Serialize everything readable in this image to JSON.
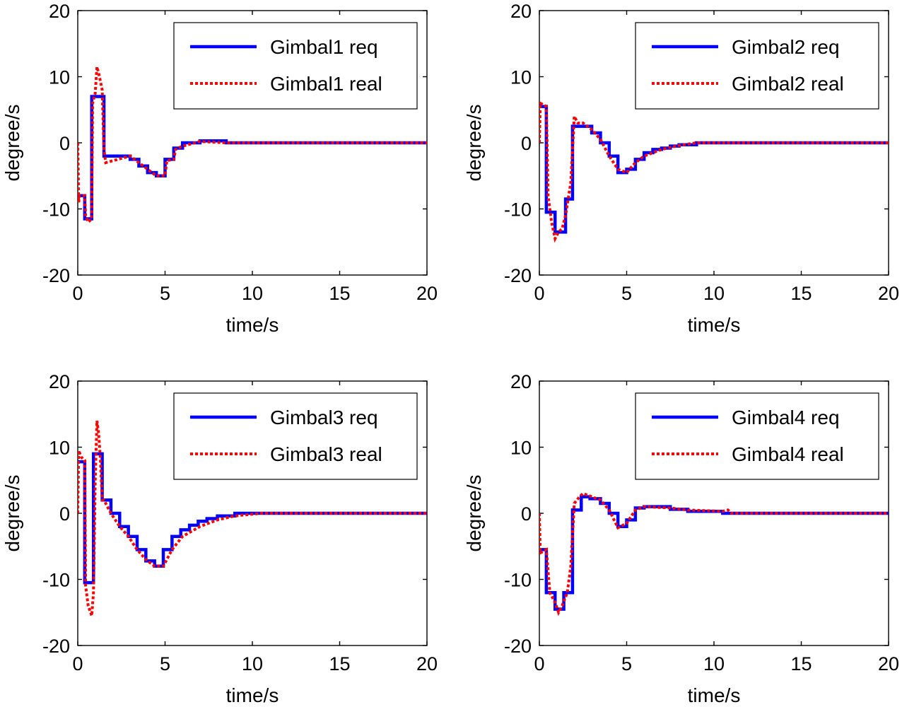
{
  "chart_data": [
    {
      "type": "line",
      "xlabel": "time/s",
      "ylabel": "degree/s",
      "xlim": [
        0,
        20
      ],
      "ylim": [
        -20,
        20
      ],
      "xticks": [
        0,
        5,
        10,
        15,
        20
      ],
      "yticks": [
        -20,
        -10,
        0,
        10,
        20
      ],
      "xtick_labels": [
        "0",
        "5",
        "10",
        "15",
        "20"
      ],
      "ytick_labels": [
        "-20",
        "-10",
        "0",
        "10",
        "20"
      ],
      "grid": false,
      "legend_position": "top-right",
      "series": [
        {
          "name": "Gimbal1 req",
          "color": "#0000ff",
          "style": "solid",
          "x": [
            0,
            0.4,
            0.4,
            0.8,
            0.8,
            1.05,
            1.05,
            1.5,
            1.5,
            3.0,
            3.0,
            3.5,
            3.5,
            4.0,
            4.0,
            4.5,
            4.5,
            5.0,
            5.0,
            5.5,
            5.5,
            6.0,
            6.0,
            7.0,
            7.0,
            8.5,
            8.5,
            20
          ],
          "y": [
            -8,
            -8,
            -11.5,
            -11.5,
            7,
            7,
            7,
            7,
            -2,
            -2,
            -2.5,
            -2.5,
            -3.5,
            -3.5,
            -4.5,
            -4.5,
            -5,
            -5,
            -2.5,
            -2.5,
            -0.8,
            -0.8,
            0,
            0,
            0.3,
            0.3,
            0,
            0
          ]
        },
        {
          "name": "Gimbal1 real",
          "color": "#ff0000",
          "style": "dotted",
          "x": [
            0,
            0.05,
            0.1,
            0.4,
            0.45,
            0.6,
            0.8,
            0.85,
            1.0,
            1.1,
            1.2,
            1.4,
            1.5,
            1.6,
            3.0,
            3.5,
            4.0,
            4.5,
            5.0,
            5.1,
            5.5,
            5.6,
            6.0,
            7.0,
            8.5,
            20
          ],
          "y": [
            0,
            -9,
            -8,
            -8,
            -11,
            -12,
            -11.5,
            6,
            7.5,
            11.5,
            10.5,
            8,
            -1,
            -3,
            -2,
            -3,
            -4,
            -5,
            -5,
            -2.7,
            -2.5,
            -1,
            -0.5,
            0.2,
            0,
            0
          ]
        }
      ]
    },
    {
      "type": "line",
      "xlabel": "time/s",
      "ylabel": "degree/s",
      "xlim": [
        0,
        20
      ],
      "ylim": [
        -20,
        20
      ],
      "xticks": [
        0,
        5,
        10,
        15,
        20
      ],
      "yticks": [
        -20,
        -10,
        0,
        10,
        20
      ],
      "xtick_labels": [
        "0",
        "5",
        "10",
        "15",
        "20"
      ],
      "ytick_labels": [
        "-20",
        "-10",
        "0",
        "10",
        "20"
      ],
      "grid": false,
      "legend_position": "top-right",
      "series": [
        {
          "name": "Gimbal2 req",
          "color": "#0000ff",
          "style": "solid",
          "x": [
            0,
            0.4,
            0.4,
            0.9,
            0.9,
            1.5,
            1.5,
            1.9,
            1.9,
            2.5,
            2.5,
            3.0,
            3.0,
            3.5,
            3.5,
            4.0,
            4.0,
            4.5,
            4.5,
            5.0,
            5.0,
            5.5,
            5.5,
            6.0,
            6.0,
            6.5,
            6.5,
            7.0,
            7.0,
            7.5,
            7.5,
            8.0,
            8.0,
            9.0,
            9.0,
            20
          ],
          "y": [
            5.5,
            5.5,
            -10.5,
            -10.5,
            -13.5,
            -13.5,
            -8.5,
            -8.5,
            2.5,
            2.5,
            2.5,
            2.5,
            1.5,
            1.5,
            0,
            0,
            -2,
            -2,
            -4.5,
            -4.5,
            -4,
            -4,
            -2.5,
            -2.5,
            -1.5,
            -1.5,
            -1,
            -1,
            -0.8,
            -0.8,
            -0.5,
            -0.5,
            -0.3,
            -0.3,
            0,
            0
          ]
        },
        {
          "name": "Gimbal2 real",
          "color": "#ff0000",
          "style": "dotted",
          "x": [
            0,
            0.05,
            0.4,
            0.5,
            0.7,
            0.9,
            1.1,
            1.3,
            1.5,
            1.8,
            2.0,
            2.2,
            2.5,
            3.0,
            3.5,
            4.0,
            4.5,
            5.0,
            5.5,
            6.0,
            7.0,
            8.0,
            9.0,
            20
          ],
          "y": [
            0,
            6,
            5.5,
            -8,
            -12,
            -14.5,
            -13.5,
            -13,
            -11,
            -6,
            4,
            3,
            3,
            2,
            0.5,
            -2,
            -4,
            -4.5,
            -3,
            -2,
            -1,
            -0.4,
            0,
            0
          ]
        }
      ]
    },
    {
      "type": "line",
      "xlabel": "time/s",
      "ylabel": "degree/s",
      "xlim": [
        0,
        20
      ],
      "ylim": [
        -20,
        20
      ],
      "xticks": [
        0,
        5,
        10,
        15,
        20
      ],
      "yticks": [
        -20,
        -10,
        0,
        10,
        20
      ],
      "xtick_labels": [
        "0",
        "5",
        "10",
        "15",
        "20"
      ],
      "ytick_labels": [
        "-20",
        "-10",
        "0",
        "10",
        "20"
      ],
      "grid": false,
      "legend_position": "top-right",
      "series": [
        {
          "name": "Gimbal3 req",
          "color": "#0000ff",
          "style": "solid",
          "x": [
            0,
            0.4,
            0.4,
            0.9,
            0.9,
            1.4,
            1.4,
            1.9,
            1.9,
            2.4,
            2.4,
            2.9,
            2.9,
            3.4,
            3.4,
            3.9,
            3.9,
            4.4,
            4.4,
            4.9,
            4.9,
            5.4,
            5.4,
            5.9,
            5.9,
            6.4,
            6.4,
            6.9,
            6.9,
            7.4,
            7.4,
            8.0,
            8.0,
            9.0,
            9.0,
            10.5,
            10.5,
            20
          ],
          "y": [
            7.8,
            7.8,
            -10.5,
            -10.5,
            9,
            9,
            2,
            2,
            0,
            0,
            -2,
            -2,
            -3.5,
            -3.5,
            -5.5,
            -5.5,
            -7.2,
            -7.2,
            -8,
            -8,
            -5.5,
            -5.5,
            -3.5,
            -3.5,
            -2.5,
            -2.5,
            -1.8,
            -1.8,
            -1.2,
            -1.2,
            -0.8,
            -0.8,
            -0.4,
            -0.4,
            0,
            0,
            0,
            0
          ]
        },
        {
          "name": "Gimbal3 real",
          "color": "#ff0000",
          "style": "dotted",
          "x": [
            0,
            0.05,
            0.2,
            0.4,
            0.45,
            0.6,
            0.8,
            0.9,
            1.0,
            1.1,
            1.2,
            1.3,
            1.4,
            1.5,
            1.9,
            2.4,
            2.9,
            3.4,
            3.9,
            4.4,
            4.9,
            5.4,
            6.0,
            7.0,
            8.0,
            9.0,
            10.5,
            20
          ],
          "y": [
            0,
            9.5,
            8.5,
            8,
            -11,
            -14,
            -15.5,
            -12,
            5,
            14,
            12,
            8,
            2,
            2,
            0,
            -2,
            -3.5,
            -5.5,
            -7,
            -8,
            -8,
            -5.5,
            -3.5,
            -2,
            -1,
            -0.4,
            0,
            0
          ]
        }
      ]
    },
    {
      "type": "line",
      "xlabel": "time/s",
      "ylabel": "degree/s",
      "xlim": [
        0,
        20
      ],
      "ylim": [
        -20,
        20
      ],
      "xticks": [
        0,
        5,
        10,
        15,
        20
      ],
      "yticks": [
        -20,
        -10,
        0,
        10,
        20
      ],
      "xtick_labels": [
        "0",
        "5",
        "10",
        "15",
        "20"
      ],
      "ytick_labels": [
        "-20",
        "-10",
        "0",
        "10",
        "20"
      ],
      "grid": false,
      "legend_position": "top-right",
      "series": [
        {
          "name": "Gimbal4 req",
          "color": "#0000ff",
          "style": "solid",
          "x": [
            0,
            0.4,
            0.4,
            0.9,
            0.9,
            1.4,
            1.4,
            1.9,
            1.9,
            2.4,
            2.4,
            2.9,
            2.9,
            3.5,
            3.5,
            4.0,
            4.0,
            4.5,
            4.5,
            5.0,
            5.0,
            5.5,
            5.5,
            6.0,
            6.0,
            7.5,
            7.5,
            8.5,
            8.5,
            10.5,
            10.5,
            20
          ],
          "y": [
            -5.5,
            -5.5,
            -12,
            -12,
            -14.5,
            -14.5,
            -12,
            -12,
            0.5,
            0.5,
            2.5,
            2.5,
            2.2,
            2.2,
            1.5,
            1.5,
            0,
            0,
            -2,
            -2,
            -1,
            -1,
            0.8,
            0.8,
            1,
            1,
            0.6,
            0.6,
            0.3,
            0.3,
            0,
            0
          ]
        },
        {
          "name": "Gimbal4 real",
          "color": "#ff0000",
          "style": "dotted",
          "x": [
            0,
            0.05,
            0.4,
            0.6,
            0.9,
            1.1,
            1.3,
            1.6,
            1.8,
            2.0,
            2.3,
            2.5,
            3.0,
            3.5,
            4.0,
            4.5,
            5.0,
            5.5,
            6.0,
            7.5,
            8.5,
            10.5,
            10.8,
            11.0,
            20
          ],
          "y": [
            0,
            -6,
            -5.5,
            -12,
            -13.5,
            -15,
            -14,
            -12,
            -8,
            1.5,
            2.5,
            3,
            2.5,
            2,
            0.5,
            -2.2,
            -1.5,
            0.5,
            1,
            0.8,
            0.5,
            0.3,
            0.5,
            0,
            0
          ]
        }
      ]
    }
  ]
}
